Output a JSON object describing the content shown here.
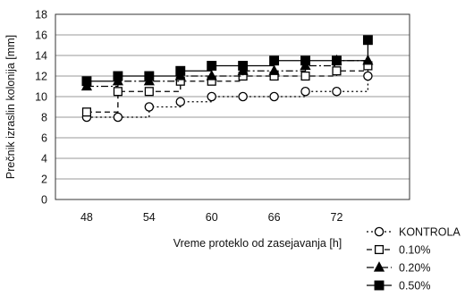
{
  "chart_data": {
    "type": "line",
    "title": "",
    "xlabel": "Vreme proteklo od zasejavanja [h]",
    "ylabel": "Prečnik izraslin kolonija [mm]",
    "xlim": [
      45,
      79
    ],
    "ylim": [
      0,
      18
    ],
    "x_ticks": [
      48,
      54,
      60,
      66,
      72
    ],
    "y_ticks": [
      0,
      2,
      4,
      6,
      8,
      10,
      12,
      14,
      16,
      18
    ],
    "grid": "horizontal",
    "legend_position": "bottom-right",
    "x": [
      48,
      51,
      54,
      57,
      60,
      63,
      66,
      69,
      72,
      75
    ],
    "series": [
      {
        "name": "KONTROLA",
        "marker": "circle-open",
        "line_style": "dotted",
        "values": [
          8,
          8,
          9,
          9.5,
          10,
          10,
          10,
          10.5,
          10.5,
          12
        ]
      },
      {
        "name": "0.10%",
        "marker": "square-open",
        "line_style": "dashed",
        "values": [
          8.5,
          10.5,
          10.5,
          11.5,
          11.5,
          12,
          12,
          12,
          12.5,
          13
        ]
      },
      {
        "name": "0.20%",
        "marker": "triangle-filled",
        "line_style": "dash-dot",
        "values": [
          11,
          11.5,
          11.5,
          12,
          12,
          12.5,
          12.5,
          13,
          13.5,
          13.5
        ]
      },
      {
        "name": "0.50%",
        "marker": "square-filled",
        "line_style": "solid",
        "values": [
          11.5,
          12,
          12,
          12.5,
          13,
          13,
          13.5,
          13.5,
          13.5,
          15.5
        ]
      }
    ],
    "colors": {
      "line": "#000000",
      "grid": "#9a9a9a",
      "marker_fill_open": "#ffffff"
    }
  }
}
